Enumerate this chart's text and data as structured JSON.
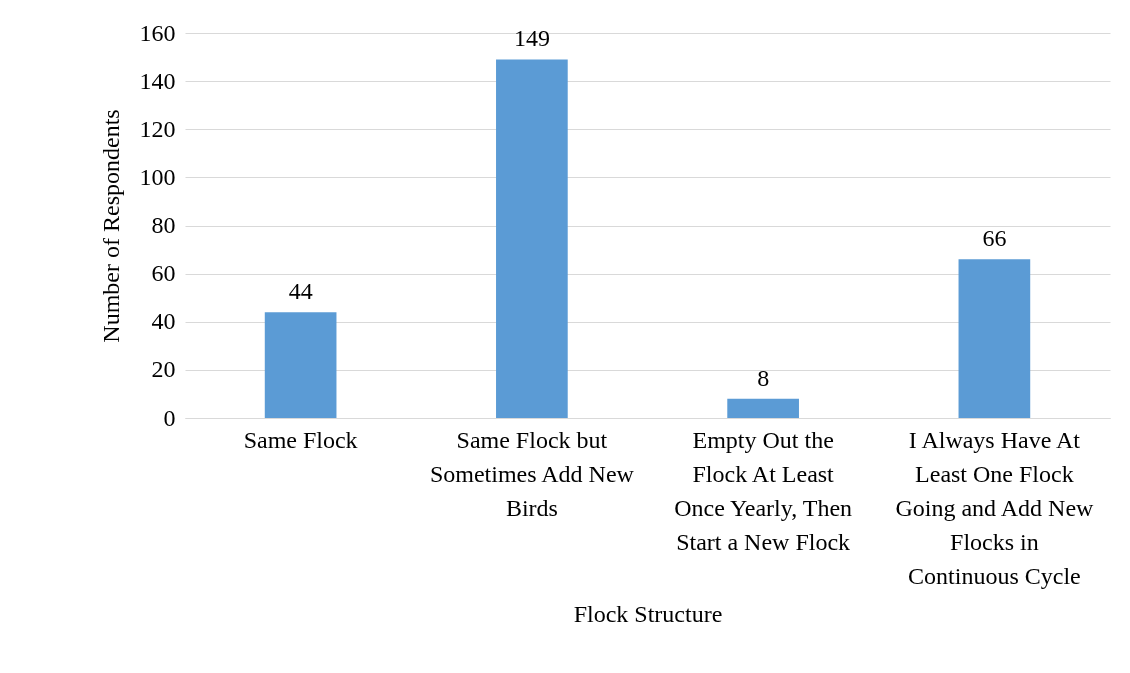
{
  "chart_data": {
    "type": "bar",
    "xlabel": "Flock Structure",
    "ylabel": "Number of Respondents",
    "categories": [
      "Same Flock",
      "Same Flock but Sometimes Add New Birds",
      "Empty Out the Flock At Least Once Yearly, Then Start a New Flock",
      "I Always Have At Least One Flock Going and Add New Flocks in Continuous Cycle"
    ],
    "values": [
      44,
      149,
      8,
      66
    ],
    "color": "#5b9bd5",
    "ylim": [
      0,
      160
    ],
    "yticks": [
      0,
      20,
      40,
      60,
      80,
      100,
      120,
      140,
      160
    ],
    "grid": "y",
    "data_labels": true
  }
}
